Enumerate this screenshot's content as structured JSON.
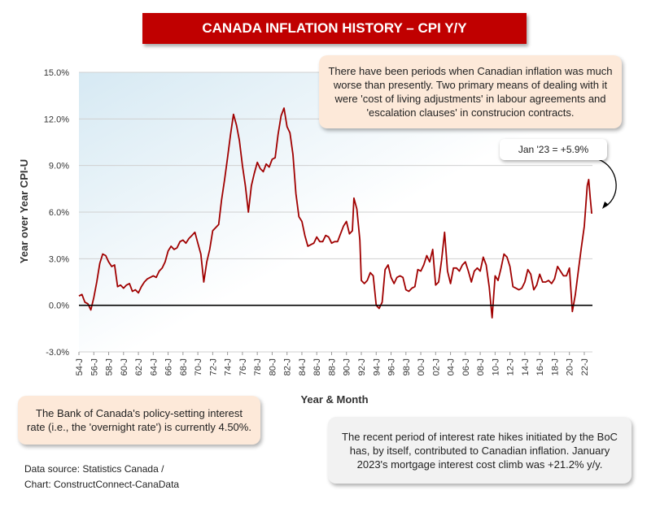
{
  "header": {
    "title": "CANADA INFLATION HISTORY – CPI Y/Y"
  },
  "callouts": {
    "top_right": "There have been periods when Canadian inflation was much worse than presently. Two primary means of dealing with it were 'cost of living adjustments' in labour agreements and 'escalation clauses' in construcion contracts.",
    "latest": "Jan '23 = +5.9%",
    "bottom_left": "The Bank of Canada's policy-setting interest rate (i.e., the 'overnight rate') is currently 4.50%.",
    "bottom_right": "The recent period of interest rate hikes initiated by the BoC has, by itself, contributed to Canadian inflation. January 2023's mortgage interest cost climb was +21.2% y/y."
  },
  "source": {
    "line1": "Data source: Statistics Canada /",
    "line2": "Chart: ConstructConnect-CanaData"
  },
  "colors": {
    "line": "#a00000",
    "title_bg": "#c00000",
    "callout_bg": "#fde9d9",
    "zero_line": "#000000"
  },
  "chart_data": {
    "type": "line",
    "title": "CANADA INFLATION HISTORY – CPI Y/Y",
    "xlabel": "Year & Month",
    "ylabel": "Year over Year CPI-U",
    "ylim": [
      -3.0,
      15.0
    ],
    "xlim": [
      1954,
      2023.1
    ],
    "y_ticks": [
      "-3.0%",
      "0.0%",
      "3.0%",
      "6.0%",
      "9.0%",
      "12.0%",
      "15.0%"
    ],
    "y_tick_values": [
      -3,
      0,
      3,
      6,
      9,
      12,
      15
    ],
    "x_ticks": [
      "54-J",
      "56-J",
      "58-J",
      "60-J",
      "62-J",
      "64-J",
      "66-J",
      "68-J",
      "70-J",
      "72-J",
      "74-J",
      "76-J",
      "78-J",
      "80-J",
      "82-J",
      "84-J",
      "86-J",
      "88-J",
      "90-J",
      "92-J",
      "94-J",
      "96-J",
      "98-J",
      "00-J",
      "02-J",
      "04-J",
      "06-J",
      "08-J",
      "10-J",
      "12-J",
      "14-J",
      "16-J",
      "18-J",
      "20-J",
      "22-J"
    ],
    "x_tick_values": [
      1954,
      1956,
      1958,
      1960,
      1962,
      1964,
      1966,
      1968,
      1970,
      1972,
      1974,
      1976,
      1978,
      1980,
      1982,
      1984,
      1986,
      1988,
      1990,
      1992,
      1994,
      1996,
      1998,
      2000,
      2002,
      2004,
      2006,
      2008,
      2010,
      2012,
      2014,
      2016,
      2018,
      2020,
      2022
    ],
    "grid": true,
    "series": [
      {
        "values": [
          [
            1954.0,
            0.6
          ],
          [
            1954.4,
            0.7
          ],
          [
            1954.8,
            0.2
          ],
          [
            1955.2,
            0.1
          ],
          [
            1955.6,
            -0.3
          ],
          [
            1956.0,
            0.5
          ],
          [
            1956.4,
            1.5
          ],
          [
            1956.8,
            2.7
          ],
          [
            1957.2,
            3.3
          ],
          [
            1957.6,
            3.2
          ],
          [
            1958.0,
            2.8
          ],
          [
            1958.4,
            2.5
          ],
          [
            1958.8,
            2.6
          ],
          [
            1959.2,
            1.2
          ],
          [
            1959.6,
            1.3
          ],
          [
            1960.0,
            1.1
          ],
          [
            1960.4,
            1.3
          ],
          [
            1960.8,
            1.4
          ],
          [
            1961.2,
            0.9
          ],
          [
            1961.6,
            1.0
          ],
          [
            1962.0,
            0.8
          ],
          [
            1962.4,
            1.2
          ],
          [
            1962.8,
            1.5
          ],
          [
            1963.2,
            1.7
          ],
          [
            1963.6,
            1.8
          ],
          [
            1964.0,
            1.9
          ],
          [
            1964.4,
            1.8
          ],
          [
            1964.8,
            2.2
          ],
          [
            1965.2,
            2.4
          ],
          [
            1965.6,
            2.8
          ],
          [
            1966.0,
            3.5
          ],
          [
            1966.4,
            3.8
          ],
          [
            1966.8,
            3.6
          ],
          [
            1967.2,
            3.7
          ],
          [
            1967.6,
            4.1
          ],
          [
            1968.0,
            4.2
          ],
          [
            1968.4,
            4.0
          ],
          [
            1968.8,
            4.3
          ],
          [
            1969.2,
            4.5
          ],
          [
            1969.6,
            4.7
          ],
          [
            1970.0,
            4.0
          ],
          [
            1970.4,
            3.3
          ],
          [
            1970.8,
            1.5
          ],
          [
            1971.2,
            2.8
          ],
          [
            1971.6,
            3.6
          ],
          [
            1972.0,
            4.8
          ],
          [
            1972.4,
            5.0
          ],
          [
            1972.8,
            5.2
          ],
          [
            1973.2,
            6.8
          ],
          [
            1973.6,
            8.1
          ],
          [
            1974.0,
            9.5
          ],
          [
            1974.4,
            11.0
          ],
          [
            1974.8,
            12.3
          ],
          [
            1975.2,
            11.6
          ],
          [
            1975.6,
            10.6
          ],
          [
            1976.0,
            9.0
          ],
          [
            1976.4,
            7.7
          ],
          [
            1976.8,
            6.0
          ],
          [
            1977.2,
            7.7
          ],
          [
            1977.6,
            8.5
          ],
          [
            1978.0,
            9.2
          ],
          [
            1978.4,
            8.8
          ],
          [
            1978.8,
            8.6
          ],
          [
            1979.2,
            9.1
          ],
          [
            1979.6,
            8.9
          ],
          [
            1980.0,
            9.4
          ],
          [
            1980.4,
            9.5
          ],
          [
            1980.8,
            11.0
          ],
          [
            1981.2,
            12.2
          ],
          [
            1981.6,
            12.7
          ],
          [
            1982.0,
            11.5
          ],
          [
            1982.4,
            11.1
          ],
          [
            1982.8,
            9.7
          ],
          [
            1983.2,
            7.2
          ],
          [
            1983.6,
            5.7
          ],
          [
            1984.0,
            5.4
          ],
          [
            1984.4,
            4.5
          ],
          [
            1984.8,
            3.8
          ],
          [
            1985.2,
            3.9
          ],
          [
            1985.6,
            4.0
          ],
          [
            1986.0,
            4.4
          ],
          [
            1986.4,
            4.1
          ],
          [
            1986.8,
            4.1
          ],
          [
            1987.2,
            4.5
          ],
          [
            1987.6,
            4.4
          ],
          [
            1988.0,
            4.0
          ],
          [
            1988.4,
            4.1
          ],
          [
            1988.8,
            4.1
          ],
          [
            1989.2,
            4.6
          ],
          [
            1989.6,
            5.1
          ],
          [
            1990.0,
            5.4
          ],
          [
            1990.4,
            4.6
          ],
          [
            1990.8,
            4.8
          ],
          [
            1991.0,
            6.9
          ],
          [
            1991.4,
            6.2
          ],
          [
            1991.8,
            4.2
          ],
          [
            1992.0,
            1.6
          ],
          [
            1992.4,
            1.4
          ],
          [
            1992.8,
            1.6
          ],
          [
            1993.2,
            2.1
          ],
          [
            1993.6,
            1.9
          ],
          [
            1994.0,
            0.0
          ],
          [
            1994.4,
            -0.2
          ],
          [
            1994.8,
            0.2
          ],
          [
            1995.2,
            2.3
          ],
          [
            1995.6,
            2.6
          ],
          [
            1996.0,
            1.8
          ],
          [
            1996.4,
            1.4
          ],
          [
            1996.8,
            1.8
          ],
          [
            1997.2,
            1.9
          ],
          [
            1997.6,
            1.8
          ],
          [
            1998.0,
            1.0
          ],
          [
            1998.4,
            0.9
          ],
          [
            1998.8,
            1.1
          ],
          [
            1999.2,
            1.2
          ],
          [
            1999.6,
            2.3
          ],
          [
            2000.0,
            2.2
          ],
          [
            2000.4,
            2.6
          ],
          [
            2000.8,
            3.2
          ],
          [
            2001.2,
            2.8
          ],
          [
            2001.6,
            3.6
          ],
          [
            2002.0,
            1.3
          ],
          [
            2002.4,
            1.5
          ],
          [
            2002.8,
            2.9
          ],
          [
            2003.2,
            4.7
          ],
          [
            2003.6,
            2.2
          ],
          [
            2004.0,
            1.4
          ],
          [
            2004.4,
            2.4
          ],
          [
            2004.8,
            2.4
          ],
          [
            2005.2,
            2.2
          ],
          [
            2005.6,
            2.6
          ],
          [
            2006.0,
            2.8
          ],
          [
            2006.4,
            2.2
          ],
          [
            2006.8,
            1.5
          ],
          [
            2007.2,
            2.2
          ],
          [
            2007.6,
            2.4
          ],
          [
            2008.0,
            2.2
          ],
          [
            2008.4,
            3.1
          ],
          [
            2008.8,
            2.6
          ],
          [
            2009.2,
            1.2
          ],
          [
            2009.6,
            -0.8
          ],
          [
            2010.0,
            1.9
          ],
          [
            2010.4,
            1.6
          ],
          [
            2010.8,
            2.4
          ],
          [
            2011.2,
            3.3
          ],
          [
            2011.6,
            3.1
          ],
          [
            2012.0,
            2.5
          ],
          [
            2012.4,
            1.2
          ],
          [
            2012.8,
            1.1
          ],
          [
            2013.2,
            1.0
          ],
          [
            2013.6,
            1.1
          ],
          [
            2014.0,
            1.5
          ],
          [
            2014.4,
            2.3
          ],
          [
            2014.8,
            2.0
          ],
          [
            2015.2,
            1.0
          ],
          [
            2015.6,
            1.3
          ],
          [
            2016.0,
            2.0
          ],
          [
            2016.4,
            1.5
          ],
          [
            2016.8,
            1.5
          ],
          [
            2017.2,
            1.6
          ],
          [
            2017.6,
            1.4
          ],
          [
            2018.0,
            1.7
          ],
          [
            2018.4,
            2.5
          ],
          [
            2018.8,
            2.2
          ],
          [
            2019.2,
            1.9
          ],
          [
            2019.6,
            1.9
          ],
          [
            2020.0,
            2.4
          ],
          [
            2020.4,
            -0.4
          ],
          [
            2020.8,
            0.7
          ],
          [
            2021.2,
            2.2
          ],
          [
            2021.6,
            3.7
          ],
          [
            2022.0,
            5.1
          ],
          [
            2022.4,
            7.7
          ],
          [
            2022.6,
            8.1
          ],
          [
            2022.8,
            6.9
          ],
          [
            2023.0,
            5.9
          ]
        ]
      }
    ],
    "annotation": "Jan '23 = +5.9%"
  }
}
